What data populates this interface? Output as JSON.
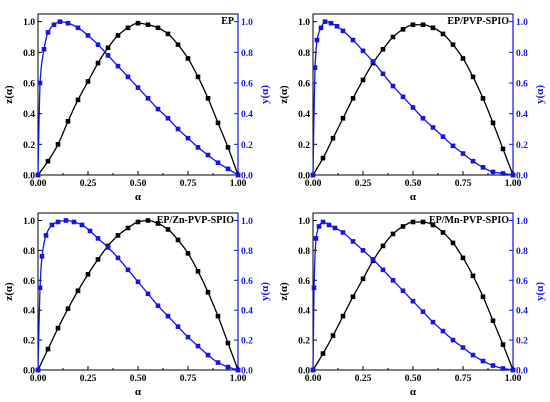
{
  "colors": {
    "z_series": "#000000",
    "y_series": "#1414e6",
    "right_axis": "#1414e6",
    "frame": "#000000"
  },
  "chart_data": [
    {
      "type": "line",
      "title": "EP",
      "xlabel": "α",
      "ylabel_left": "z(α)",
      "ylabel_right": "y(α)",
      "xlim": [
        0,
        1
      ],
      "ylim": [
        0,
        1.05
      ],
      "x_ticks": [
        "0.00",
        "0.25",
        "0.50",
        "0.75",
        "1.00"
      ],
      "y_ticks": [
        "0.0",
        "0.2",
        "0.4",
        "0.6",
        "0.8",
        "1.0"
      ],
      "grid": false,
      "series": [
        {
          "key": "z",
          "axis": "left",
          "marker": "square",
          "x": [
            0.0,
            0.05,
            0.1,
            0.15,
            0.2,
            0.25,
            0.3,
            0.35,
            0.4,
            0.45,
            0.5,
            0.55,
            0.6,
            0.65,
            0.7,
            0.75,
            0.8,
            0.85,
            0.9,
            0.95,
            1.0
          ],
          "values": [
            0.0,
            0.09,
            0.2,
            0.35,
            0.49,
            0.61,
            0.73,
            0.83,
            0.91,
            0.96,
            0.99,
            0.98,
            0.96,
            0.92,
            0.85,
            0.76,
            0.64,
            0.5,
            0.34,
            0.18,
            0.0
          ]
        },
        {
          "key": "y",
          "axis": "right",
          "marker": "square",
          "x": [
            0.0,
            0.01,
            0.03,
            0.05,
            0.08,
            0.11,
            0.15,
            0.2,
            0.25,
            0.3,
            0.35,
            0.4,
            0.45,
            0.5,
            0.55,
            0.6,
            0.65,
            0.7,
            0.75,
            0.8,
            0.85,
            0.9,
            0.95,
            1.0
          ],
          "values": [
            0.0,
            0.6,
            0.82,
            0.93,
            0.98,
            1.0,
            0.99,
            0.96,
            0.91,
            0.85,
            0.78,
            0.71,
            0.64,
            0.57,
            0.5,
            0.43,
            0.37,
            0.3,
            0.24,
            0.18,
            0.13,
            0.08,
            0.04,
            0.0
          ]
        }
      ]
    },
    {
      "type": "line",
      "title": "EP/PVP-SPIO",
      "xlabel": "α",
      "ylabel_left": "z(α)",
      "ylabel_right": "y(α)",
      "xlim": [
        0,
        1
      ],
      "ylim": [
        0,
        1.05
      ],
      "x_ticks": [
        "0.00",
        "0.25",
        "0.50",
        "0.75",
        "1.00"
      ],
      "y_ticks": [
        "0.0",
        "0.2",
        "0.4",
        "0.6",
        "0.8",
        "1.0"
      ],
      "grid": false,
      "series": [
        {
          "key": "z",
          "axis": "left",
          "marker": "square",
          "x": [
            0.0,
            0.05,
            0.1,
            0.15,
            0.2,
            0.25,
            0.3,
            0.35,
            0.4,
            0.45,
            0.5,
            0.55,
            0.6,
            0.65,
            0.7,
            0.75,
            0.8,
            0.85,
            0.9,
            0.95,
            1.0
          ],
          "values": [
            0.0,
            0.11,
            0.24,
            0.37,
            0.5,
            0.62,
            0.73,
            0.82,
            0.9,
            0.95,
            0.98,
            0.98,
            0.96,
            0.92,
            0.85,
            0.76,
            0.64,
            0.5,
            0.34,
            0.17,
            0.0
          ]
        },
        {
          "key": "y",
          "axis": "right",
          "marker": "square",
          "x": [
            0.0,
            0.01,
            0.02,
            0.04,
            0.06,
            0.09,
            0.12,
            0.15,
            0.2,
            0.25,
            0.3,
            0.35,
            0.4,
            0.45,
            0.5,
            0.55,
            0.6,
            0.65,
            0.7,
            0.75,
            0.8,
            0.85,
            0.9,
            0.95,
            1.0
          ],
          "values": [
            0.0,
            0.7,
            0.88,
            0.96,
            1.0,
            0.99,
            0.97,
            0.94,
            0.88,
            0.81,
            0.74,
            0.66,
            0.58,
            0.51,
            0.44,
            0.37,
            0.31,
            0.25,
            0.19,
            0.14,
            0.09,
            0.05,
            0.02,
            0.01,
            0.0
          ]
        }
      ]
    },
    {
      "type": "line",
      "title": "EP/Zn-PVP-SPIO",
      "xlabel": "α",
      "ylabel_left": "z(α)",
      "ylabel_right": "y(α)",
      "xlim": [
        0,
        1
      ],
      "ylim": [
        0,
        1.05
      ],
      "x_ticks": [
        "0.00",
        "0.25",
        "0.50",
        "0.75",
        "1.00"
      ],
      "y_ticks": [
        "0.0",
        "0.2",
        "0.4",
        "0.6",
        "0.8",
        "1.0"
      ],
      "grid": false,
      "series": [
        {
          "key": "z",
          "axis": "left",
          "marker": "square",
          "x": [
            0.0,
            0.05,
            0.1,
            0.15,
            0.2,
            0.25,
            0.3,
            0.35,
            0.4,
            0.45,
            0.5,
            0.55,
            0.6,
            0.65,
            0.7,
            0.75,
            0.8,
            0.85,
            0.9,
            0.95,
            1.0
          ],
          "values": [
            0.0,
            0.14,
            0.28,
            0.41,
            0.53,
            0.64,
            0.74,
            0.83,
            0.9,
            0.95,
            0.99,
            1.0,
            0.98,
            0.94,
            0.87,
            0.78,
            0.66,
            0.52,
            0.36,
            0.18,
            0.0
          ]
        },
        {
          "key": "y",
          "axis": "right",
          "marker": "square",
          "x": [
            0.0,
            0.01,
            0.02,
            0.04,
            0.07,
            0.1,
            0.14,
            0.18,
            0.22,
            0.26,
            0.3,
            0.35,
            0.4,
            0.45,
            0.5,
            0.55,
            0.6,
            0.65,
            0.7,
            0.75,
            0.8,
            0.85,
            0.9,
            0.95,
            1.0
          ],
          "values": [
            0.0,
            0.55,
            0.76,
            0.9,
            0.97,
            0.99,
            1.0,
            0.99,
            0.97,
            0.93,
            0.88,
            0.82,
            0.75,
            0.67,
            0.59,
            0.51,
            0.43,
            0.36,
            0.29,
            0.22,
            0.16,
            0.1,
            0.05,
            0.02,
            0.0
          ]
        }
      ]
    },
    {
      "type": "line",
      "title": "EP/Mn-PVP-SPIO",
      "xlabel": "α",
      "ylabel_left": "z(α)",
      "ylabel_right": "y(α)",
      "xlim": [
        0,
        1
      ],
      "ylim": [
        0,
        1.05
      ],
      "x_ticks": [
        "0.00",
        "0.25",
        "0.50",
        "0.75",
        "1.00"
      ],
      "y_ticks": [
        "0.0",
        "0.2",
        "0.4",
        "0.6",
        "0.8",
        "1.0"
      ],
      "grid": false,
      "series": [
        {
          "key": "z",
          "axis": "left",
          "marker": "square",
          "x": [
            0.0,
            0.05,
            0.1,
            0.15,
            0.2,
            0.25,
            0.3,
            0.35,
            0.4,
            0.45,
            0.5,
            0.55,
            0.6,
            0.65,
            0.7,
            0.75,
            0.8,
            0.85,
            0.9,
            0.95,
            1.0
          ],
          "values": [
            0.0,
            0.11,
            0.23,
            0.36,
            0.49,
            0.61,
            0.73,
            0.83,
            0.91,
            0.96,
            0.99,
            0.99,
            0.97,
            0.92,
            0.85,
            0.75,
            0.63,
            0.49,
            0.33,
            0.17,
            0.0
          ]
        },
        {
          "key": "y",
          "axis": "right",
          "marker": "square",
          "x": [
            0.0,
            0.005,
            0.015,
            0.03,
            0.05,
            0.08,
            0.11,
            0.15,
            0.2,
            0.25,
            0.3,
            0.35,
            0.4,
            0.45,
            0.5,
            0.55,
            0.6,
            0.65,
            0.7,
            0.75,
            0.8,
            0.85,
            0.9,
            0.95,
            1.0
          ],
          "values": [
            0.0,
            0.55,
            0.88,
            0.96,
            0.99,
            0.97,
            0.95,
            0.92,
            0.86,
            0.8,
            0.74,
            0.67,
            0.6,
            0.53,
            0.46,
            0.39,
            0.32,
            0.26,
            0.2,
            0.15,
            0.1,
            0.06,
            0.03,
            0.01,
            0.0
          ]
        }
      ]
    }
  ]
}
